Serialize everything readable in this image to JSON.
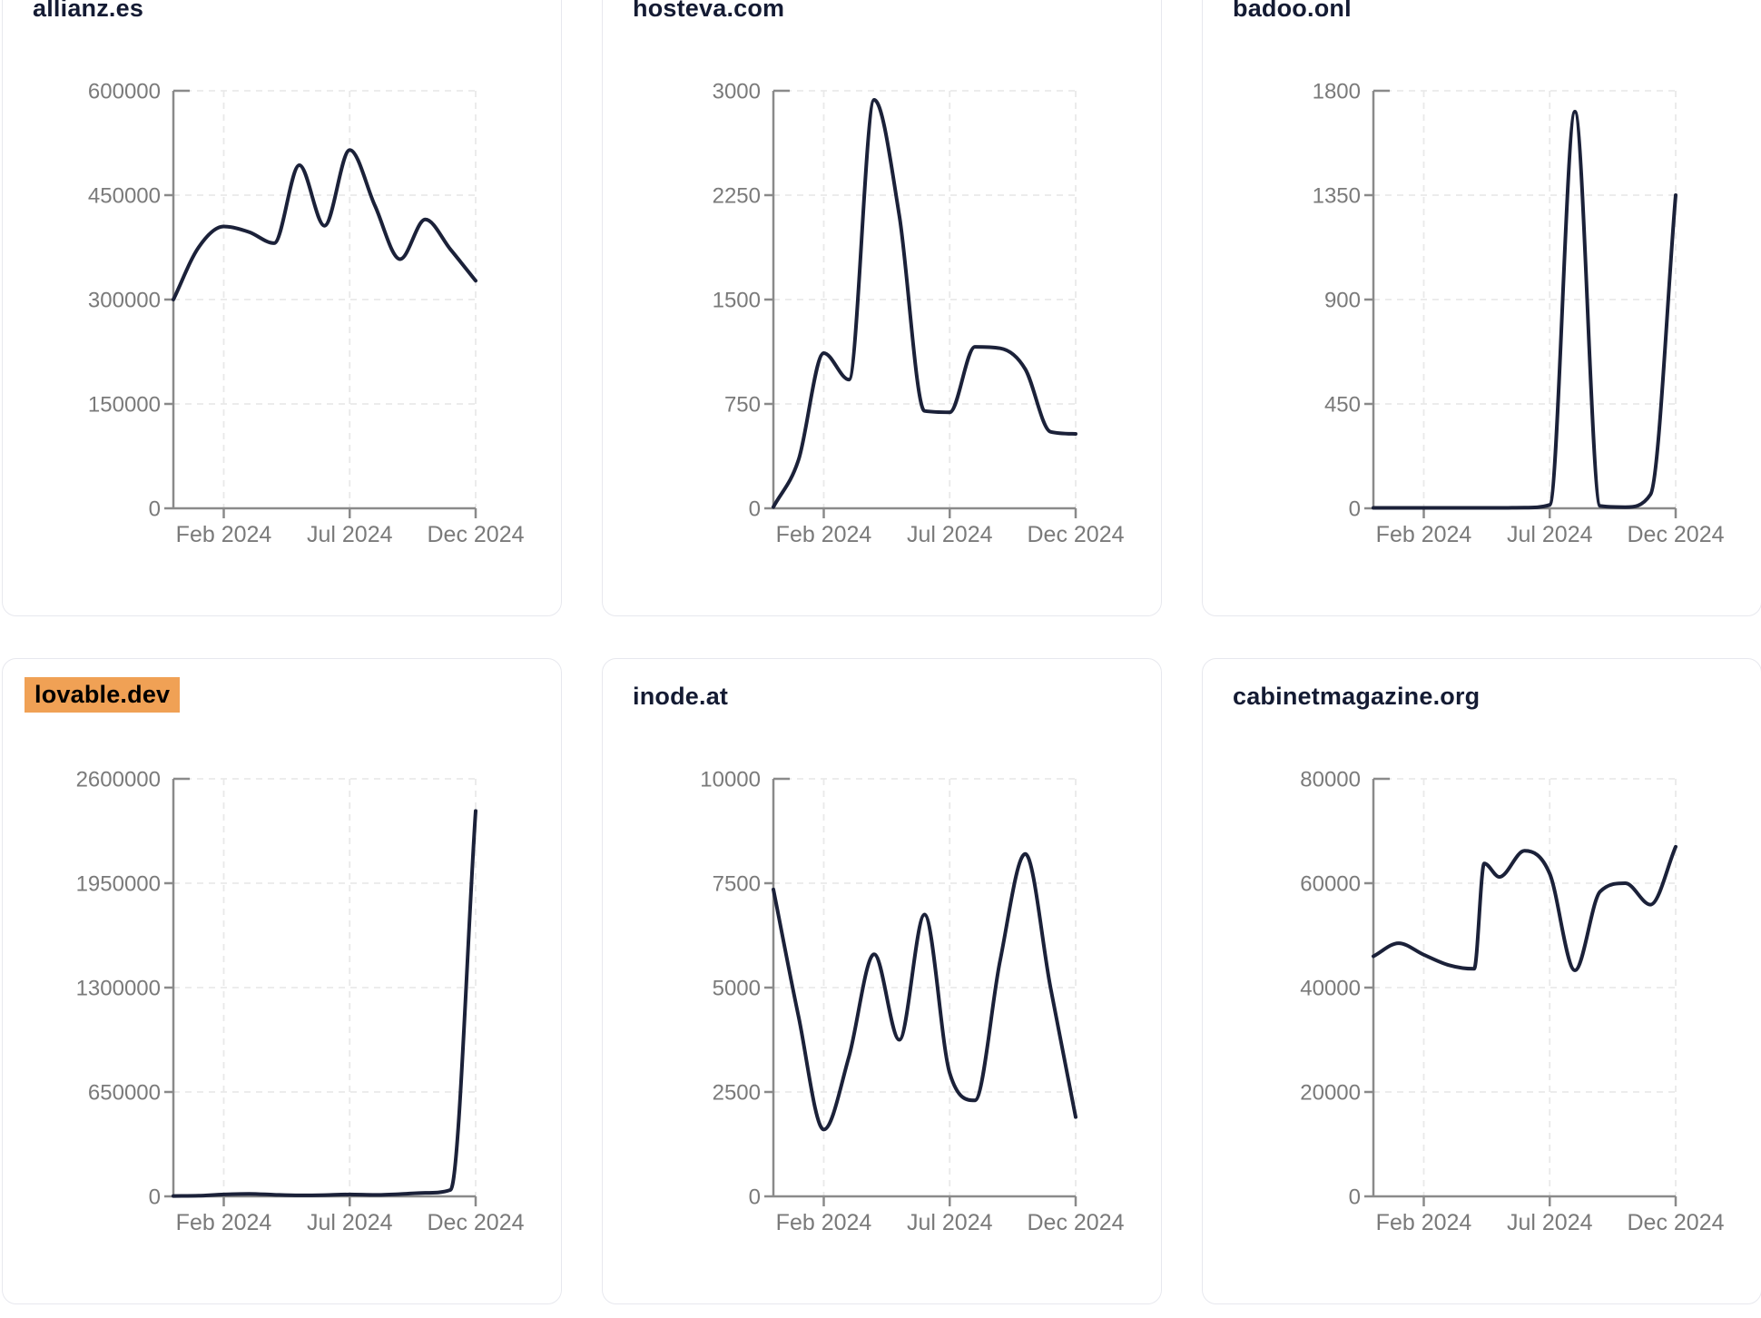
{
  "page": {
    "background": "#ffffff",
    "card_background": "#ffffff",
    "card_border_color": "#e7e8ee",
    "title_color": "#141b33",
    "highlight_color": "#f0a155",
    "highlight_text_color": "#000000",
    "line_color": "#1b2139",
    "axis_color": "#8a8a8a",
    "grid_color": "#e9e9e9",
    "tick_label_color": "#7a7a7a"
  },
  "chart_data": [
    {
      "type": "line",
      "title": "allianz.es",
      "highlighted": false,
      "xlabel": "",
      "ylabel": "",
      "x_range": [
        "Dec 2023",
        "Dec 2024"
      ],
      "x_tick_labels": [
        "Feb 2024",
        "Jul 2024",
        "Dec 2024"
      ],
      "x_tick_months": [
        2,
        7,
        12
      ],
      "y_ticks": [
        600000,
        450000,
        300000,
        150000,
        0
      ],
      "ylim": [
        0,
        600000
      ],
      "grid": "dashed",
      "legend": "none",
      "points": [
        [
          0,
          300000
        ],
        [
          1,
          375000
        ],
        [
          2,
          405000
        ],
        [
          3,
          397000
        ],
        [
          4,
          381000
        ],
        [
          5,
          493000
        ],
        [
          6,
          406000
        ],
        [
          7,
          515000
        ],
        [
          8,
          435000
        ],
        [
          9,
          358000
        ],
        [
          10,
          415000
        ],
        [
          11,
          372000
        ],
        [
          12,
          327000
        ]
      ]
    },
    {
      "type": "line",
      "title": "hosteva.com",
      "highlighted": false,
      "xlabel": "",
      "ylabel": "",
      "x_range": [
        "Dec 2023",
        "Dec 2024"
      ],
      "x_tick_labels": [
        "Feb 2024",
        "Jul 2024",
        "Dec 2024"
      ],
      "x_tick_months": [
        2,
        7,
        12
      ],
      "y_ticks": [
        3000,
        2250,
        1500,
        750,
        0
      ],
      "ylim": [
        0,
        3000
      ],
      "grid": "dashed",
      "legend": "none",
      "points": [
        [
          0,
          10
        ],
        [
          1,
          350
        ],
        [
          2,
          1115
        ],
        [
          3,
          925
        ],
        [
          4,
          2935
        ],
        [
          5,
          2100
        ],
        [
          6,
          700
        ],
        [
          7,
          690
        ],
        [
          8,
          1160
        ],
        [
          9,
          1150
        ],
        [
          10,
          1000
        ],
        [
          11,
          550
        ],
        [
          12,
          535
        ]
      ]
    },
    {
      "type": "line",
      "title": "badoo.onl",
      "highlighted": false,
      "xlabel": "",
      "ylabel": "",
      "x_range": [
        "Dec 2023",
        "Dec 2024"
      ],
      "x_tick_labels": [
        "Feb 2024",
        "Jul 2024",
        "Dec 2024"
      ],
      "x_tick_months": [
        2,
        7,
        12
      ],
      "y_ticks": [
        1800,
        1350,
        900,
        450,
        0
      ],
      "ylim": [
        0,
        1800
      ],
      "grid": "dashed",
      "legend": "none",
      "points": [
        [
          0,
          2
        ],
        [
          1,
          2
        ],
        [
          2,
          2
        ],
        [
          3,
          2
        ],
        [
          4,
          2
        ],
        [
          5,
          2
        ],
        [
          6,
          3
        ],
        [
          7,
          15
        ],
        [
          8,
          1710
        ],
        [
          9,
          10
        ],
        [
          10,
          5
        ],
        [
          11,
          60
        ],
        [
          12,
          1350
        ]
      ]
    },
    {
      "type": "line",
      "title": "lovable.dev",
      "highlighted": true,
      "xlabel": "",
      "ylabel": "",
      "x_range": [
        "Dec 2023",
        "Dec 2024"
      ],
      "x_tick_labels": [
        "Feb 2024",
        "Jul 2024",
        "Dec 2024"
      ],
      "x_tick_months": [
        2,
        7,
        12
      ],
      "y_ticks": [
        2600000,
        1950000,
        1300000,
        650000,
        0
      ],
      "ylim": [
        0,
        2600000
      ],
      "grid": "dashed",
      "legend": "none",
      "points": [
        [
          0,
          2000
        ],
        [
          1,
          4000
        ],
        [
          2,
          12000
        ],
        [
          3,
          16000
        ],
        [
          4,
          10000
        ],
        [
          5,
          6000
        ],
        [
          6,
          8000
        ],
        [
          7,
          12000
        ],
        [
          8,
          9000
        ],
        [
          9,
          14000
        ],
        [
          10,
          22000
        ],
        [
          11,
          40000
        ],
        [
          12,
          2400000
        ]
      ]
    },
    {
      "type": "line",
      "title": "inode.at",
      "highlighted": false,
      "xlabel": "",
      "ylabel": "",
      "x_range": [
        "Dec 2023",
        "Dec 2024"
      ],
      "x_tick_labels": [
        "Feb 2024",
        "Jul 2024",
        "Dec 2024"
      ],
      "x_tick_months": [
        2,
        7,
        12
      ],
      "y_ticks": [
        10000,
        7500,
        5000,
        2500,
        0
      ],
      "ylim": [
        0,
        10000
      ],
      "grid": "dashed",
      "legend": "none",
      "points": [
        [
          0,
          7350
        ],
        [
          1,
          4300
        ],
        [
          2,
          1600
        ],
        [
          3,
          3350
        ],
        [
          4,
          5800
        ],
        [
          5,
          3750
        ],
        [
          6,
          6750
        ],
        [
          7,
          2950
        ],
        [
          8,
          2300
        ],
        [
          9,
          5650
        ],
        [
          10,
          8200
        ],
        [
          11,
          5000
        ],
        [
          12,
          1900
        ]
      ]
    },
    {
      "type": "line",
      "title": "cabinetmagazine.org",
      "highlighted": false,
      "xlabel": "",
      "ylabel": "",
      "x_range": [
        "Dec 2023",
        "Dec 2024"
      ],
      "x_tick_labels": [
        "Feb 2024",
        "Jul 2024",
        "Dec 2024"
      ],
      "x_tick_months": [
        2,
        7,
        12
      ],
      "y_ticks": [
        80000,
        60000,
        40000,
        20000,
        0
      ],
      "ylim": [
        0,
        80000
      ],
      "grid": "dashed",
      "legend": "none",
      "points": [
        [
          0,
          46000
        ],
        [
          1,
          48500
        ],
        [
          2,
          46300
        ],
        [
          3,
          44300
        ],
        [
          4,
          43600
        ],
        [
          4.4,
          63800
        ],
        [
          5,
          61200
        ],
        [
          6,
          66200
        ],
        [
          7,
          61800
        ],
        [
          8,
          43300
        ],
        [
          9,
          58400
        ],
        [
          10,
          60000
        ],
        [
          11,
          55900
        ],
        [
          12,
          67000
        ]
      ]
    }
  ]
}
